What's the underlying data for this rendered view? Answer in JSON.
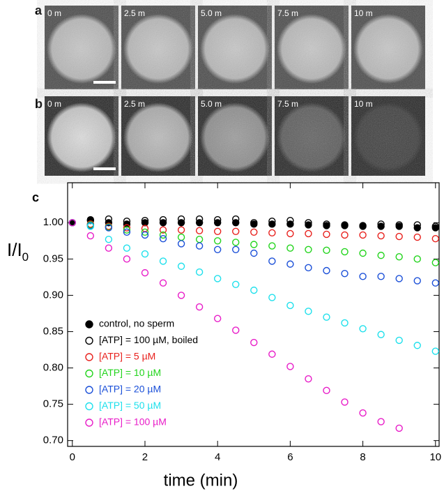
{
  "panels": {
    "a": {
      "letter": "a",
      "labels": [
        "0 m",
        "2.5 m",
        "5.0 m",
        "7.5 m",
        "10 m"
      ]
    },
    "b": {
      "letter": "b",
      "labels": [
        "0 m",
        "2.5 m",
        "5.0 m",
        "7.5 m",
        "10 m"
      ]
    }
  },
  "chart_data": {
    "type": "scatter",
    "letter": "c",
    "xlabel": "time (min)",
    "ylabel_main": "I/I",
    "ylabel_subscript": "0",
    "xlim": [
      -0.13,
      10.1
    ],
    "ylim": [
      0.692,
      1.055
    ],
    "xticks": [
      0,
      2,
      4,
      6,
      8,
      10
    ],
    "yticks": [
      {
        "value": 0.7,
        "label": "0.70"
      },
      {
        "value": 0.75,
        "label": "0.75"
      },
      {
        "value": 0.8,
        "label": "0.80"
      },
      {
        "value": 0.85,
        "label": "0.85"
      },
      {
        "value": 0.9,
        "label": "0.90"
      },
      {
        "value": 0.95,
        "label": "0.95"
      },
      {
        "value": 1.0,
        "label": "1.00"
      }
    ],
    "series": [
      {
        "name": "control, no sperm",
        "color": "#000000",
        "marker": "filled",
        "x": [
          0,
          0.5,
          1,
          1.5,
          2,
          2.5,
          3,
          3.5,
          4,
          4.5,
          5,
          5.5,
          6,
          6.5,
          7,
          7.5,
          8,
          8.5,
          9,
          9.5,
          10
        ],
        "values": [
          1.0,
          1.003,
          1.0,
          0.998,
          1.0,
          1.0,
          1.0,
          1.0,
          1.0,
          1.0,
          0.998,
          0.998,
          0.998,
          0.997,
          0.996,
          0.996,
          0.995,
          0.995,
          0.995,
          0.993,
          0.993
        ]
      },
      {
        "name": "[ATP] = 100 µM, boiled",
        "color": "#000000",
        "marker": "open",
        "x": [
          0,
          0.5,
          1,
          1.5,
          2,
          2.5,
          3,
          3.5,
          4,
          4.5,
          5,
          5.5,
          6,
          6.5,
          7,
          7.5,
          8,
          8.5,
          9,
          9.5,
          10
        ],
        "values": [
          1.0,
          1.004,
          1.005,
          1.002,
          1.003,
          1.004,
          1.005,
          1.005,
          1.004,
          1.005,
          1.0,
          1.002,
          1.003,
          1.0,
          0.998,
          0.997,
          0.996,
          0.998,
          0.997,
          0.997,
          0.995
        ]
      },
      {
        "name": "[ATP] = 5 µM",
        "color": "#e8201c",
        "marker": "open",
        "x": [
          0,
          0.5,
          1,
          1.5,
          2,
          2.5,
          3,
          3.5,
          4,
          4.5,
          5,
          5.5,
          6,
          6.5,
          7,
          7.5,
          8,
          8.5,
          9,
          9.5,
          10
        ],
        "values": [
          1.0,
          0.998,
          0.995,
          0.993,
          0.992,
          0.99,
          0.99,
          0.989,
          0.988,
          0.988,
          0.987,
          0.986,
          0.985,
          0.985,
          0.984,
          0.983,
          0.983,
          0.982,
          0.981,
          0.98,
          0.978
        ]
      },
      {
        "name": "[ATP] = 10 µM",
        "color": "#22d41c",
        "marker": "open",
        "x": [
          0,
          0.5,
          1,
          1.5,
          2,
          2.5,
          3,
          3.5,
          4,
          4.5,
          5,
          5.5,
          6,
          6.5,
          7,
          7.5,
          8,
          8.5,
          9,
          9.5,
          10
        ],
        "values": [
          1.0,
          0.997,
          0.994,
          0.99,
          0.987,
          0.983,
          0.98,
          0.977,
          0.975,
          0.973,
          0.97,
          0.968,
          0.965,
          0.963,
          0.962,
          0.96,
          0.958,
          0.955,
          0.953,
          0.95,
          0.945
        ]
      },
      {
        "name": "[ATP] = 20 µM",
        "color": "#1a4fd8",
        "marker": "open",
        "x": [
          0,
          0.5,
          1,
          1.5,
          2,
          2.5,
          3,
          3.5,
          4,
          4.5,
          5,
          5.5,
          6,
          6.5,
          7,
          7.5,
          8,
          8.5,
          9,
          9.5,
          10
        ],
        "values": [
          1.0,
          0.996,
          0.993,
          0.987,
          0.983,
          0.978,
          0.971,
          0.968,
          0.963,
          0.963,
          0.958,
          0.947,
          0.943,
          0.938,
          0.934,
          0.93,
          0.926,
          0.926,
          0.923,
          0.92,
          0.917
        ]
      },
      {
        "name": "[ATP] = 50 µM",
        "color": "#1ee0ec",
        "marker": "open",
        "x": [
          0,
          0.5,
          1,
          1.5,
          2,
          2.5,
          3,
          3.5,
          4,
          4.5,
          5,
          5.5,
          6,
          6.5,
          7,
          7.5,
          8,
          8.5,
          9,
          9.5,
          10
        ],
        "values": [
          1.0,
          0.995,
          0.977,
          0.965,
          0.957,
          0.947,
          0.94,
          0.932,
          0.923,
          0.915,
          0.907,
          0.897,
          0.886,
          0.878,
          0.87,
          0.862,
          0.854,
          0.846,
          0.838,
          0.831,
          0.823
        ]
      },
      {
        "name": "[ATP] = 100 µM",
        "color": "#e81cc8",
        "marker": "open",
        "x": [
          0,
          0.5,
          1,
          1.5,
          2,
          2.5,
          3,
          3.5,
          4,
          4.5,
          5,
          5.5,
          6,
          6.5,
          7,
          7.5,
          8,
          8.5,
          9
        ],
        "values": [
          1.0,
          0.982,
          0.965,
          0.95,
          0.931,
          0.917,
          0.9,
          0.884,
          0.868,
          0.852,
          0.835,
          0.819,
          0.802,
          0.785,
          0.769,
          0.753,
          0.738,
          0.726,
          0.717
        ]
      }
    ]
  }
}
